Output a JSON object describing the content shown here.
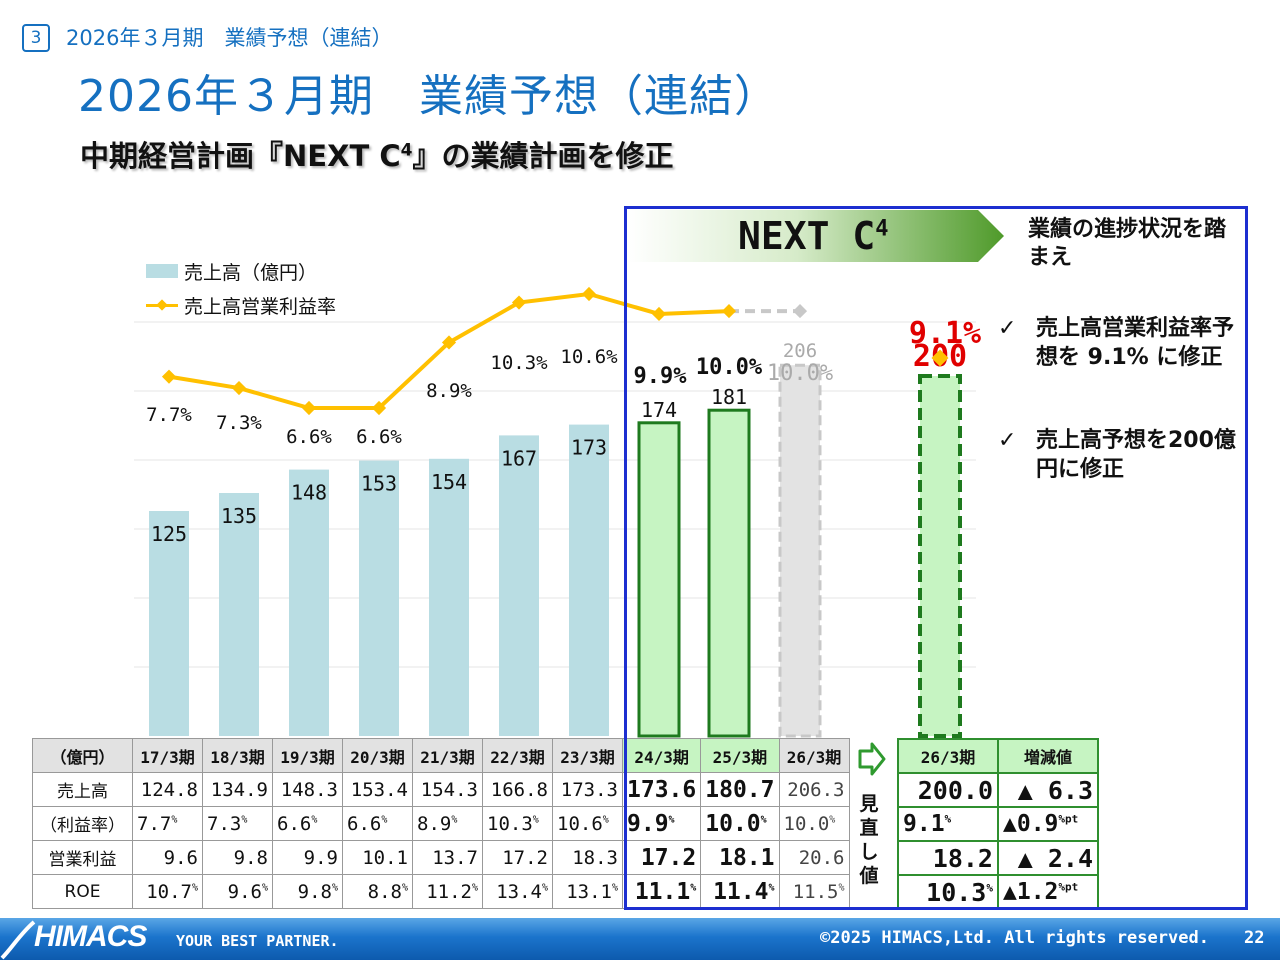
{
  "header": {
    "page_number": "3",
    "breadcrumb": "2026年３月期　業績予想（連結）",
    "title": "2026年３月期　業績予想（連結）",
    "subtitle_pre": "中期経営計画『NEXT C",
    "subtitle_sup": "4",
    "subtitle_post": "』の業績計画を修正"
  },
  "banner": {
    "label": "NEXT C",
    "label_sup": "4"
  },
  "notes": {
    "heading": "業績の進捗状況を踏まえ",
    "item1": "売上高営業利益率予想を 9.1% に修正",
    "item2": "売上高予想を200億円に修正",
    "check": "✓"
  },
  "legend": {
    "bar": "売上高（億円）",
    "line": "売上高営業利益率"
  },
  "chart_data": {
    "type": "bar",
    "categories": [
      "17/3期",
      "18/3期",
      "19/3期",
      "20/3期",
      "21/3期",
      "22/3期",
      "23/3期",
      "24/3期",
      "25/3期",
      "26/3期",
      "26/3期(見直し値)"
    ],
    "series": [
      {
        "name": "売上高（億円）",
        "type": "bar",
        "values": [
          125,
          135,
          148,
          153,
          154,
          167,
          173,
          174,
          181,
          206,
          200
        ]
      },
      {
        "name": "売上高営業利益率",
        "type": "line",
        "values": [
          7.7,
          7.3,
          6.6,
          6.6,
          8.9,
          10.3,
          10.6,
          9.9,
          10.0,
          10.0,
          9.1
        ]
      }
    ],
    "bar_labels": [
      "125",
      "135",
      "148",
      "153",
      "154",
      "167",
      "173",
      "174",
      "181",
      "206",
      "200"
    ],
    "line_labels": [
      "7.7%",
      "7.3%",
      "6.6%",
      "6.6%",
      "8.9%",
      "10.3%",
      "10.6%",
      "9.9%",
      "10.0%",
      "10.0%",
      "9.1%"
    ],
    "bar_styles": [
      "past",
      "past",
      "past",
      "past",
      "past",
      "past",
      "past",
      "actual",
      "actual",
      "plan",
      "revised"
    ],
    "colors": {
      "past": "#b9dde3",
      "actual": "#c6f4c2",
      "actual_border": "#1e7a1e",
      "plan": "#e3e3e3",
      "plan_border": "#c8c8c8",
      "revised_border": "#1e7a1e",
      "line": "#ffc000",
      "revised_label": "#e00000",
      "grid": "#e6e6e6"
    },
    "ylim_bar": [
      0,
      230
    ],
    "ylim_line": [
      0,
      13
    ],
    "grid": true,
    "legend_position": "top-left"
  },
  "table": {
    "corner": "（億円）",
    "columns": [
      "17/3期",
      "18/3期",
      "19/3期",
      "20/3期",
      "21/3期",
      "22/3期",
      "23/3期",
      "24/3期",
      "25/3期",
      "26/3期"
    ],
    "rows": [
      {
        "label": "売上高",
        "values": [
          "124.8",
          "134.9",
          "148.3",
          "153.4",
          "154.3",
          "166.8",
          "173.3",
          "173.6",
          "180.7",
          "206.3"
        ]
      },
      {
        "label": "（利益率）",
        "values": [
          "7.7",
          "7.3",
          "6.6",
          "6.6",
          "8.9",
          "10.3",
          "10.6",
          "9.9",
          "10.0",
          "10.0"
        ],
        "unit": "%"
      },
      {
        "label": "営業利益",
        "values": [
          "9.6",
          "9.8",
          "9.9",
          "10.1",
          "13.7",
          "17.2",
          "18.3",
          "17.2",
          "18.1",
          "20.6"
        ]
      },
      {
        "label": "ROE",
        "values": [
          "10.7",
          "9.6",
          "9.8",
          "8.8",
          "11.2",
          "13.4",
          "13.1",
          "11.1",
          "11.4",
          "11.5"
        ],
        "unit": "%"
      }
    ]
  },
  "revision": {
    "label": "見直し値",
    "col1": "26/3期",
    "col2": "増減値",
    "rows": [
      {
        "value": "200.0",
        "change": "▲ 6.3",
        "value_unit": "",
        "change_unit": ""
      },
      {
        "value": "9.1",
        "change": "▲0.9",
        "value_unit": "%",
        "change_unit": "%pt"
      },
      {
        "value": "18.2",
        "change": "▲ 2.4",
        "value_unit": "",
        "change_unit": ""
      },
      {
        "value": "10.3",
        "change": "▲1.2",
        "value_unit": "%",
        "change_unit": "%pt"
      }
    ]
  },
  "footer": {
    "logo": "HIMACS",
    "tagline": "YOUR BEST PARTNER.",
    "copyright": "©2025 HIMACS,Ltd. All rights reserved.",
    "page": "22"
  }
}
